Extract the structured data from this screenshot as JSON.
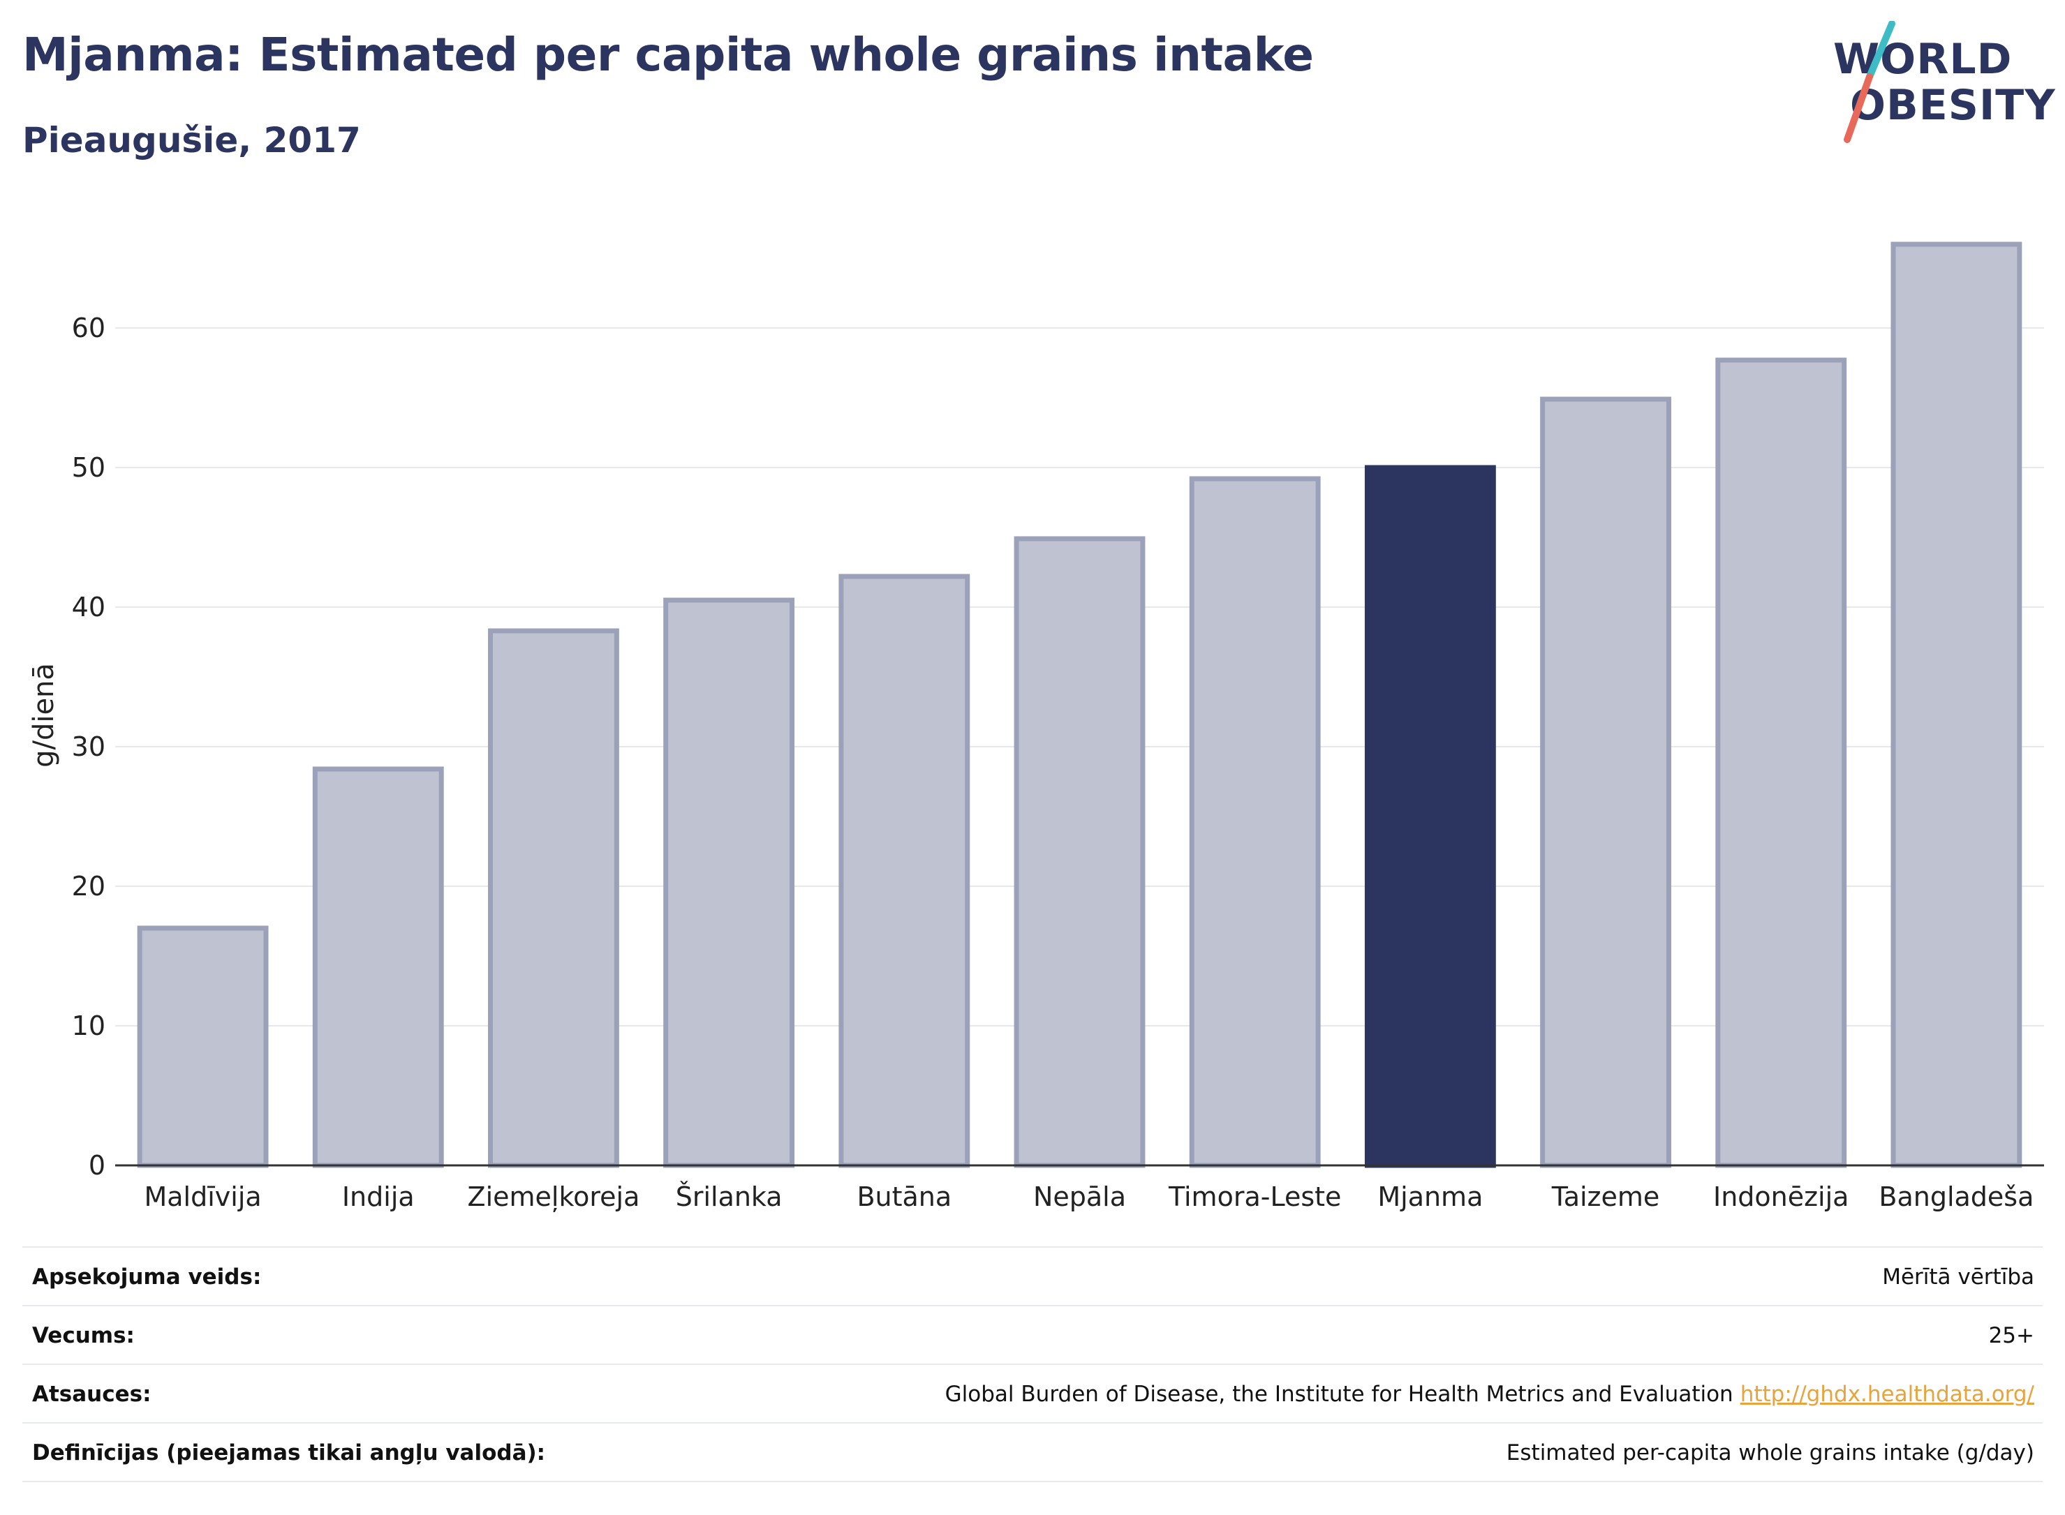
{
  "header": {
    "title": "Mjanma: Estimated per capita whole grains intake",
    "subtitle": "Pieaugušie, 2017"
  },
  "logo": {
    "line1": "WORLD",
    "line2": "OBESITY",
    "colors": {
      "text": "#2b3560",
      "slash_top": "#3dbcc6",
      "slash_bottom": "#e8685a"
    }
  },
  "chart_data": {
    "type": "bar",
    "ylabel": "g/dienā",
    "ylim": [
      0,
      68
    ],
    "yticks": [
      0,
      10,
      20,
      30,
      40,
      50,
      60
    ],
    "grid": true,
    "categories": [
      "Maldīvija",
      "Indija",
      "Ziemeļkoreja",
      "Šrilanka",
      "Butāna",
      "Nepāla",
      "Timora-Leste",
      "Mjanma",
      "Taizeme",
      "Indonēzija",
      "Bangladeša"
    ],
    "values": [
      17.0,
      28.4,
      38.3,
      40.5,
      42.2,
      44.9,
      49.2,
      50.0,
      54.9,
      57.7,
      66.0
    ],
    "highlight": "Mjanma",
    "colors": {
      "bar": "#bfc3d1",
      "bar_edge": "#9aa1b9",
      "highlight": "#2b3560"
    }
  },
  "meta": {
    "rows": [
      {
        "label": "Apsekojuma veids:",
        "value": "Mērītā vērtība",
        "link": ""
      },
      {
        "label": "Vecums:",
        "value": "25+",
        "link": ""
      },
      {
        "label": "Atsauces:",
        "value": "Global Burden of Disease, the Institute for Health Metrics and Evaluation",
        "link": "http://ghdx.healthdata.org/"
      },
      {
        "label": "Definīcijas (pieejamas tikai angļu valodā):",
        "value": "Estimated per-capita whole grains intake (g/day)",
        "link": ""
      }
    ]
  }
}
